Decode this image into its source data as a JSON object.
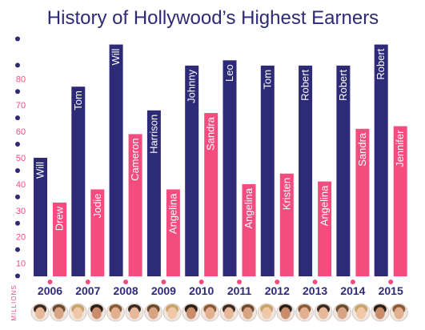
{
  "chart_data": {
    "type": "bar",
    "title": "History of Hollywood’s Highest Earners",
    "ylabel": "MILLIONS",
    "ylim": [
      0,
      90
    ],
    "yticks": [
      10,
      20,
      30,
      40,
      50,
      60,
      70,
      80
    ],
    "categories": [
      "2006",
      "2007",
      "2008",
      "2009",
      "2010",
      "2011",
      "2012",
      "2013",
      "2014",
      "2015"
    ],
    "series": [
      {
        "color": "#2d2a78",
        "values": [
          45,
          72,
          88,
          63,
          80,
          82,
          80,
          80,
          80,
          88
        ],
        "labels": [
          "Will",
          "Tom",
          "Will",
          "Harrison",
          "Johnny",
          "Leo",
          "Tom",
          "Robert",
          "Robert",
          "Robert"
        ]
      },
      {
        "color": "#f24d7e",
        "values": [
          28,
          33,
          54,
          33,
          62,
          35,
          39,
          36,
          56,
          57
        ],
        "labels": [
          "Drew",
          "Jodie",
          "Cameron",
          "Angelina",
          "Sandra",
          "Angelina",
          "Kristen",
          "Angelina",
          "Sandra",
          "Jennifer"
        ]
      }
    ]
  },
  "colors": {
    "title": "#2d2a78",
    "tick_text": "#f24d7e",
    "male_bar": "#2d2a78",
    "female_bar": "#f24d7e",
    "bar_label": "#ffffff",
    "year_text": "#2d2a78"
  },
  "footer": {
    "portrait_icons": [
      "portrait-icon"
    ]
  }
}
